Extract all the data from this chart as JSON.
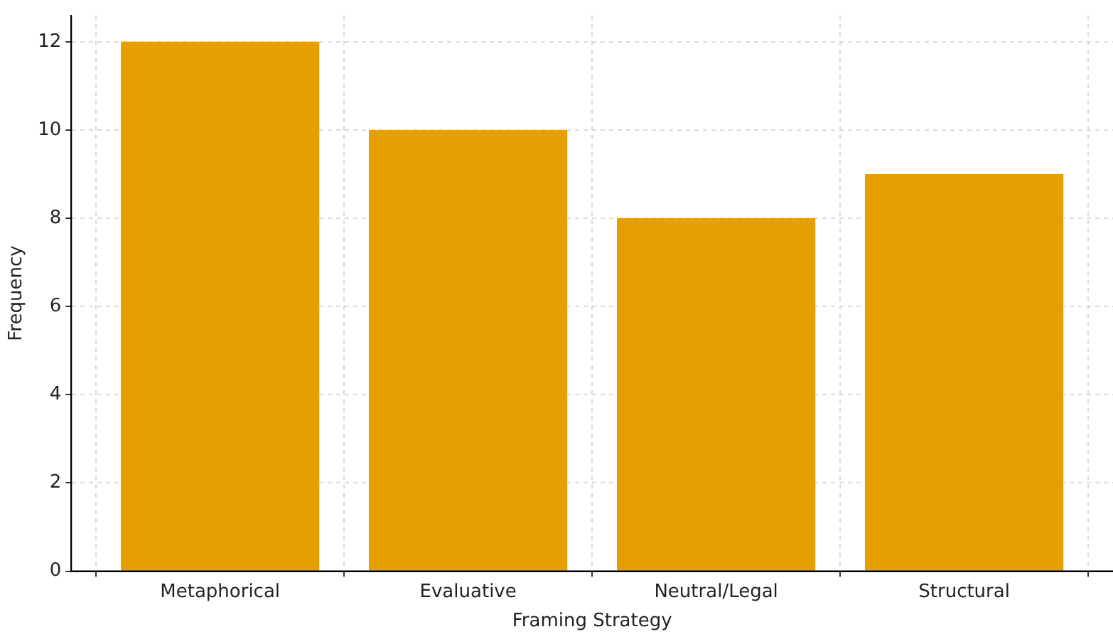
{
  "chart_data": {
    "type": "bar",
    "xlabel": "Framing Strategy",
    "ylabel": "Frequency",
    "categories": [
      "Metaphorical",
      "Evaluative",
      "Neutral/Legal",
      "Structural"
    ],
    "values": [
      12,
      10,
      8,
      9
    ],
    "color": "#e69f00",
    "ylim": [
      0,
      12.6
    ],
    "yticks": [
      0,
      2,
      4,
      6,
      8,
      10,
      12
    ],
    "grid": true,
    "legend": false
  }
}
